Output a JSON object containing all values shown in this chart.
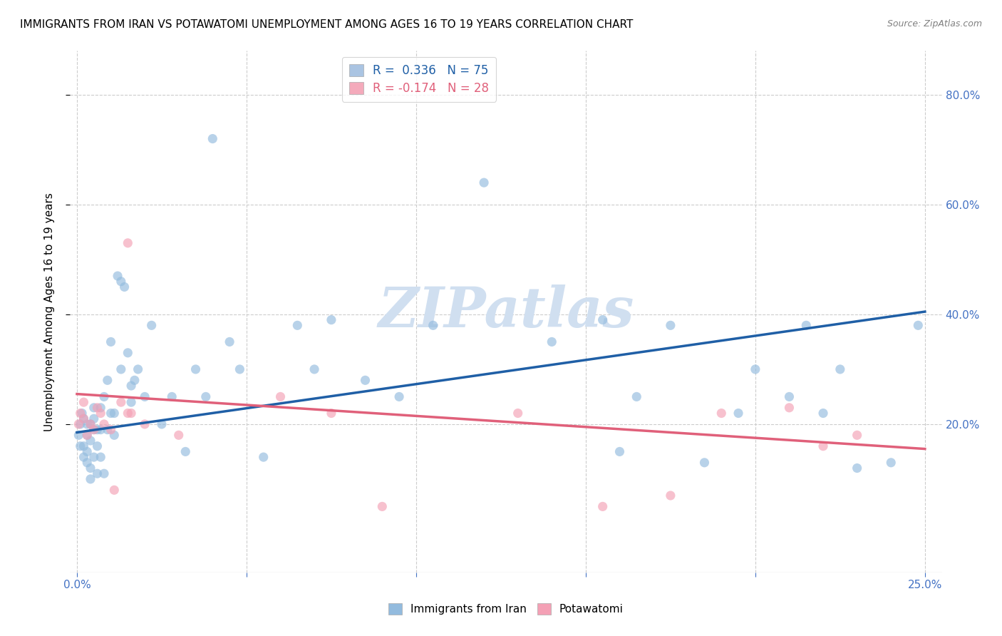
{
  "title": "IMMIGRANTS FROM IRAN VS POTAWATOMI UNEMPLOYMENT AMONG AGES 16 TO 19 YEARS CORRELATION CHART",
  "source": "Source: ZipAtlas.com",
  "ylabel": "Unemployment Among Ages 16 to 19 years",
  "xlim": [
    -0.002,
    0.255
  ],
  "ylim": [
    -0.07,
    0.88
  ],
  "yticks": [
    0.2,
    0.4,
    0.6,
    0.8
  ],
  "yticklabels": [
    "20.0%",
    "40.0%",
    "60.0%",
    "80.0%"
  ],
  "xtick_positions": [
    0.0,
    0.05,
    0.1,
    0.15,
    0.2,
    0.25
  ],
  "legend1_label": "R =  0.336   N = 75",
  "legend2_label": "R = -0.174   N = 28",
  "legend1_patch_color": "#aac4e2",
  "legend2_patch_color": "#f4aabb",
  "scatter1_color": "#93bbde",
  "scatter2_color": "#f4a0b5",
  "trend1_color": "#1f5fa6",
  "trend2_color": "#e0607a",
  "scatter_alpha": 0.65,
  "scatter_size": 90,
  "watermark": "ZIPatlas",
  "watermark_color": "#d0dff0",
  "blue_scatter_x": [
    0.0005,
    0.001,
    0.001,
    0.0015,
    0.002,
    0.002,
    0.002,
    0.003,
    0.003,
    0.003,
    0.003,
    0.004,
    0.004,
    0.004,
    0.004,
    0.005,
    0.005,
    0.005,
    0.005,
    0.006,
    0.006,
    0.006,
    0.007,
    0.007,
    0.007,
    0.008,
    0.008,
    0.009,
    0.009,
    0.01,
    0.01,
    0.011,
    0.011,
    0.012,
    0.013,
    0.013,
    0.014,
    0.015,
    0.016,
    0.016,
    0.017,
    0.018,
    0.02,
    0.022,
    0.025,
    0.028,
    0.032,
    0.035,
    0.038,
    0.04,
    0.045,
    0.048,
    0.055,
    0.065,
    0.07,
    0.075,
    0.085,
    0.095,
    0.105,
    0.12,
    0.14,
    0.155,
    0.16,
    0.165,
    0.175,
    0.185,
    0.195,
    0.2,
    0.21,
    0.215,
    0.22,
    0.225,
    0.23,
    0.24,
    0.248
  ],
  "blue_scatter_y": [
    0.18,
    0.16,
    0.2,
    0.22,
    0.14,
    0.16,
    0.21,
    0.13,
    0.15,
    0.18,
    0.2,
    0.1,
    0.12,
    0.17,
    0.2,
    0.14,
    0.19,
    0.21,
    0.23,
    0.11,
    0.16,
    0.19,
    0.14,
    0.19,
    0.23,
    0.11,
    0.25,
    0.19,
    0.28,
    0.22,
    0.35,
    0.18,
    0.22,
    0.47,
    0.3,
    0.46,
    0.45,
    0.33,
    0.27,
    0.24,
    0.28,
    0.3,
    0.25,
    0.38,
    0.2,
    0.25,
    0.15,
    0.3,
    0.25,
    0.72,
    0.35,
    0.3,
    0.14,
    0.38,
    0.3,
    0.39,
    0.28,
    0.25,
    0.38,
    0.64,
    0.35,
    0.39,
    0.15,
    0.25,
    0.38,
    0.13,
    0.22,
    0.3,
    0.25,
    0.38,
    0.22,
    0.3,
    0.12,
    0.13,
    0.38
  ],
  "pink_scatter_x": [
    0.0005,
    0.001,
    0.002,
    0.002,
    0.003,
    0.004,
    0.005,
    0.006,
    0.007,
    0.008,
    0.01,
    0.011,
    0.013,
    0.015,
    0.015,
    0.016,
    0.02,
    0.03,
    0.06,
    0.075,
    0.09,
    0.13,
    0.155,
    0.175,
    0.19,
    0.21,
    0.22,
    0.23
  ],
  "pink_scatter_y": [
    0.2,
    0.22,
    0.21,
    0.24,
    0.18,
    0.2,
    0.19,
    0.23,
    0.22,
    0.2,
    0.19,
    0.08,
    0.24,
    0.53,
    0.22,
    0.22,
    0.2,
    0.18,
    0.25,
    0.22,
    0.05,
    0.22,
    0.05,
    0.07,
    0.22,
    0.23,
    0.16,
    0.18
  ],
  "trend1_x0": 0.0,
  "trend1_x1": 0.25,
  "trend1_y0": 0.185,
  "trend1_y1": 0.405,
  "trend2_x0": 0.0,
  "trend2_x1": 0.25,
  "trend2_y0": 0.255,
  "trend2_y1": 0.155,
  "grid_color": "#cccccc",
  "title_fontsize": 11,
  "axis_label_fontsize": 11,
  "tick_fontsize": 11,
  "tick_color": "#4472c4",
  "background_color": "#ffffff"
}
